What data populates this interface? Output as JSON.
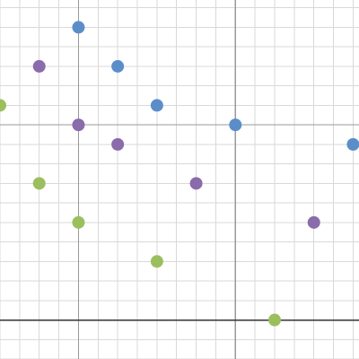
{
  "chart_data": {
    "type": "scatter",
    "title": "",
    "xlabel": "",
    "ylabel": "",
    "xlim": [
      -2.0,
      7.15
    ],
    "ylim": [
      -1.0,
      8.2
    ],
    "grid": true,
    "x_major_lines": [
      0,
      4
    ],
    "y_major_lines": [
      5
    ],
    "x_axis_line": 0,
    "series": [
      {
        "color": "#5b8ec9",
        "points": [
          [
            0,
            7.5
          ],
          [
            1,
            6.5
          ],
          [
            2,
            5.5
          ],
          [
            4,
            5
          ],
          [
            7,
            4.5
          ]
        ]
      },
      {
        "color": "#8a6bab",
        "points": [
          [
            -1,
            6.5
          ],
          [
            0,
            5
          ],
          [
            1,
            4.5
          ],
          [
            3,
            3.5
          ],
          [
            6,
            2.5
          ]
        ]
      },
      {
        "color": "#9bbf5e",
        "points": [
          [
            -2,
            5.5
          ],
          [
            -1,
            3.5
          ],
          [
            0,
            2.5
          ],
          [
            2,
            1.5
          ],
          [
            5,
            0
          ]
        ]
      }
    ]
  }
}
